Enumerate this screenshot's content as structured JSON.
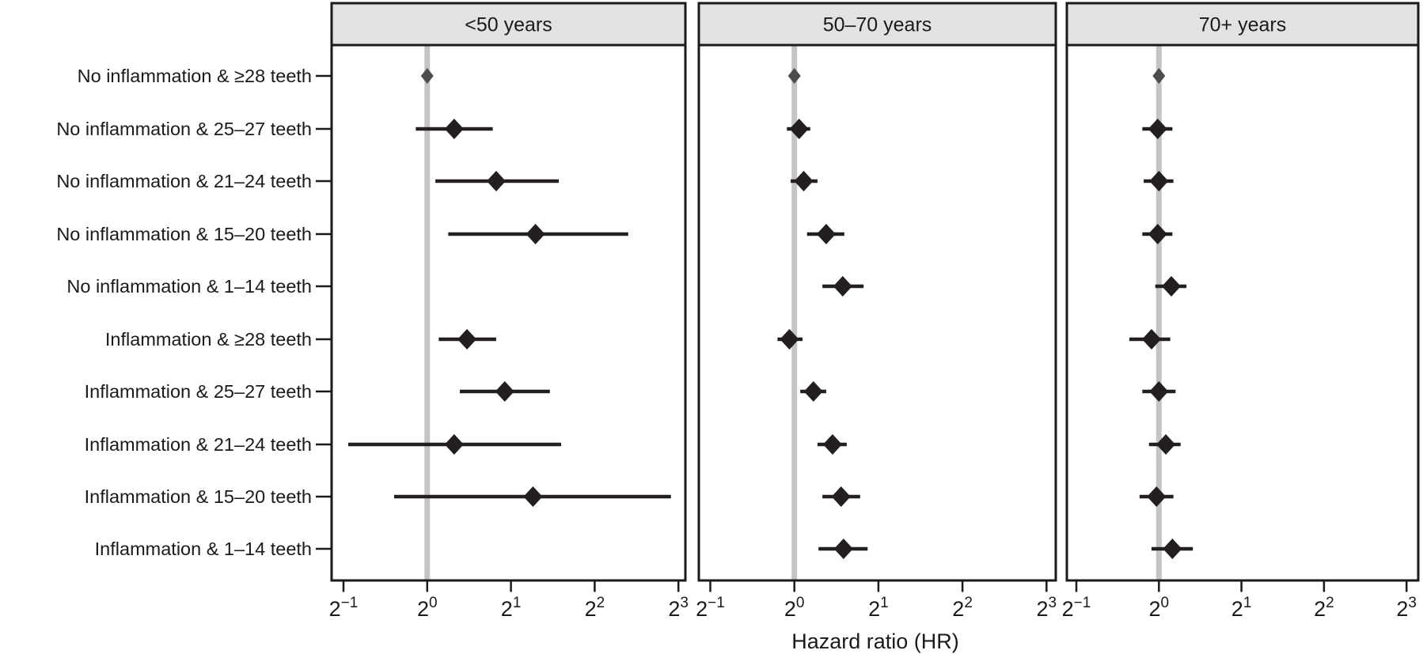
{
  "chart_data": {
    "type": "forest",
    "title": "",
    "xlabel": "Hazard ratio (HR)",
    "x_scale": "log2",
    "x_tick_base": "2",
    "x_tick_exponents": [
      -1,
      0,
      1,
      2,
      3
    ],
    "x_range_log2": [
      -1.15,
      3.1
    ],
    "reference_line": 1.0,
    "grid": "none",
    "legend": "none",
    "categories": [
      "No inflammation &  ≥28 teeth",
      "No inflammation & 25–27 teeth",
      "No inflammation & 21–24 teeth",
      "No inflammation & 15–20 teeth",
      "No inflammation &   1–14 teeth",
      "Inflammation &  ≥28 teeth",
      "Inflammation & 25–27 teeth",
      "Inflammation & 21–24 teeth",
      "Inflammation & 15–20 teeth",
      "Inflammation &   1–14 teeth"
    ],
    "panels": [
      {
        "label": "<50 years",
        "estimates": [
          {
            "hr": 1.0,
            "lo": null,
            "hi": null,
            "reference": true
          },
          {
            "hr": 1.25,
            "lo": 0.91,
            "hi": 1.72
          },
          {
            "hr": 1.77,
            "lo": 1.07,
            "hi": 2.97
          },
          {
            "hr": 2.45,
            "lo": 1.19,
            "hi": 5.28
          },
          null,
          {
            "hr": 1.39,
            "lo": 1.1,
            "hi": 1.77
          },
          {
            "hr": 1.9,
            "lo": 1.31,
            "hi": 2.76
          },
          {
            "hr": 1.25,
            "lo": 0.52,
            "hi": 3.03
          },
          {
            "hr": 2.4,
            "lo": 0.76,
            "hi": 7.52
          },
          null
        ]
      },
      {
        "label": "50–70 years",
        "estimates": [
          {
            "hr": 1.0,
            "lo": null,
            "hi": null,
            "reference": true
          },
          {
            "hr": 1.04,
            "lo": 0.94,
            "hi": 1.14
          },
          {
            "hr": 1.08,
            "lo": 0.97,
            "hi": 1.21
          },
          {
            "hr": 1.3,
            "lo": 1.11,
            "hi": 1.51
          },
          {
            "hr": 1.49,
            "lo": 1.26,
            "hi": 1.77
          },
          {
            "hr": 0.96,
            "lo": 0.87,
            "hi": 1.07
          },
          {
            "hr": 1.17,
            "lo": 1.05,
            "hi": 1.3
          },
          {
            "hr": 1.37,
            "lo": 1.21,
            "hi": 1.54
          },
          {
            "hr": 1.47,
            "lo": 1.26,
            "hi": 1.72
          },
          {
            "hr": 1.5,
            "lo": 1.22,
            "hi": 1.83
          }
        ]
      },
      {
        "label": "70+ years",
        "estimates": [
          {
            "hr": 1.0,
            "lo": null,
            "hi": null,
            "reference": true
          },
          {
            "hr": 0.99,
            "lo": 0.87,
            "hi": 1.12
          },
          {
            "hr": 1.0,
            "lo": 0.88,
            "hi": 1.13
          },
          {
            "hr": 0.99,
            "lo": 0.87,
            "hi": 1.12
          },
          {
            "hr": 1.11,
            "lo": 0.97,
            "hi": 1.26
          },
          {
            "hr": 0.94,
            "lo": 0.78,
            "hi": 1.1
          },
          {
            "hr": 1.0,
            "lo": 0.87,
            "hi": 1.15
          },
          {
            "hr": 1.06,
            "lo": 0.92,
            "hi": 1.2
          },
          {
            "hr": 0.98,
            "lo": 0.85,
            "hi": 1.13
          },
          {
            "hr": 1.12,
            "lo": 0.94,
            "hi": 1.33
          }
        ]
      }
    ]
  },
  "colors": {
    "panel_border": "#1a1a1a",
    "header_fill": "#e2e2e2",
    "ci_line": "#231f20",
    "diamond_fill": "#231f20",
    "reference_diamond_fill": "#4d4d4d",
    "reference_line": "#c4c4c4",
    "text": "#1a1a1a",
    "background": "#ffffff"
  }
}
